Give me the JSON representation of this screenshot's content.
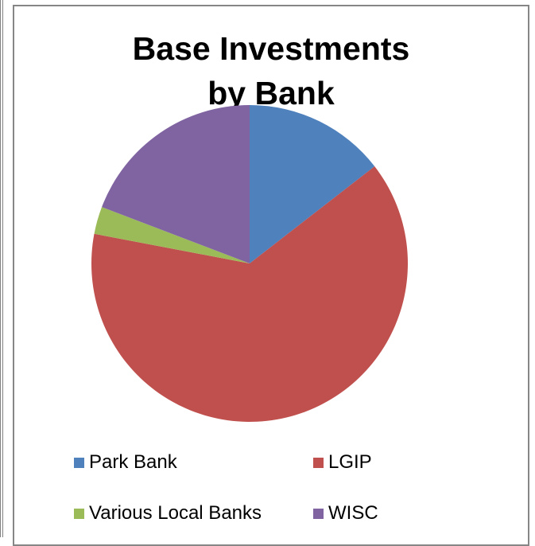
{
  "chart_data": {
    "type": "pie",
    "title": "Base Investments\nby Bank",
    "categories": [
      "Park Bank",
      "LGIP",
      "Various Local Banks",
      "WISC"
    ],
    "values": [
      14.5,
      63.5,
      2.8,
      19.2
    ],
    "colors": [
      "#4F81BD",
      "#C0504D",
      "#9BBB59",
      "#8064A2"
    ],
    "start_angle_deg": 0,
    "direction": "clockwise",
    "legend_position": "bottom"
  }
}
